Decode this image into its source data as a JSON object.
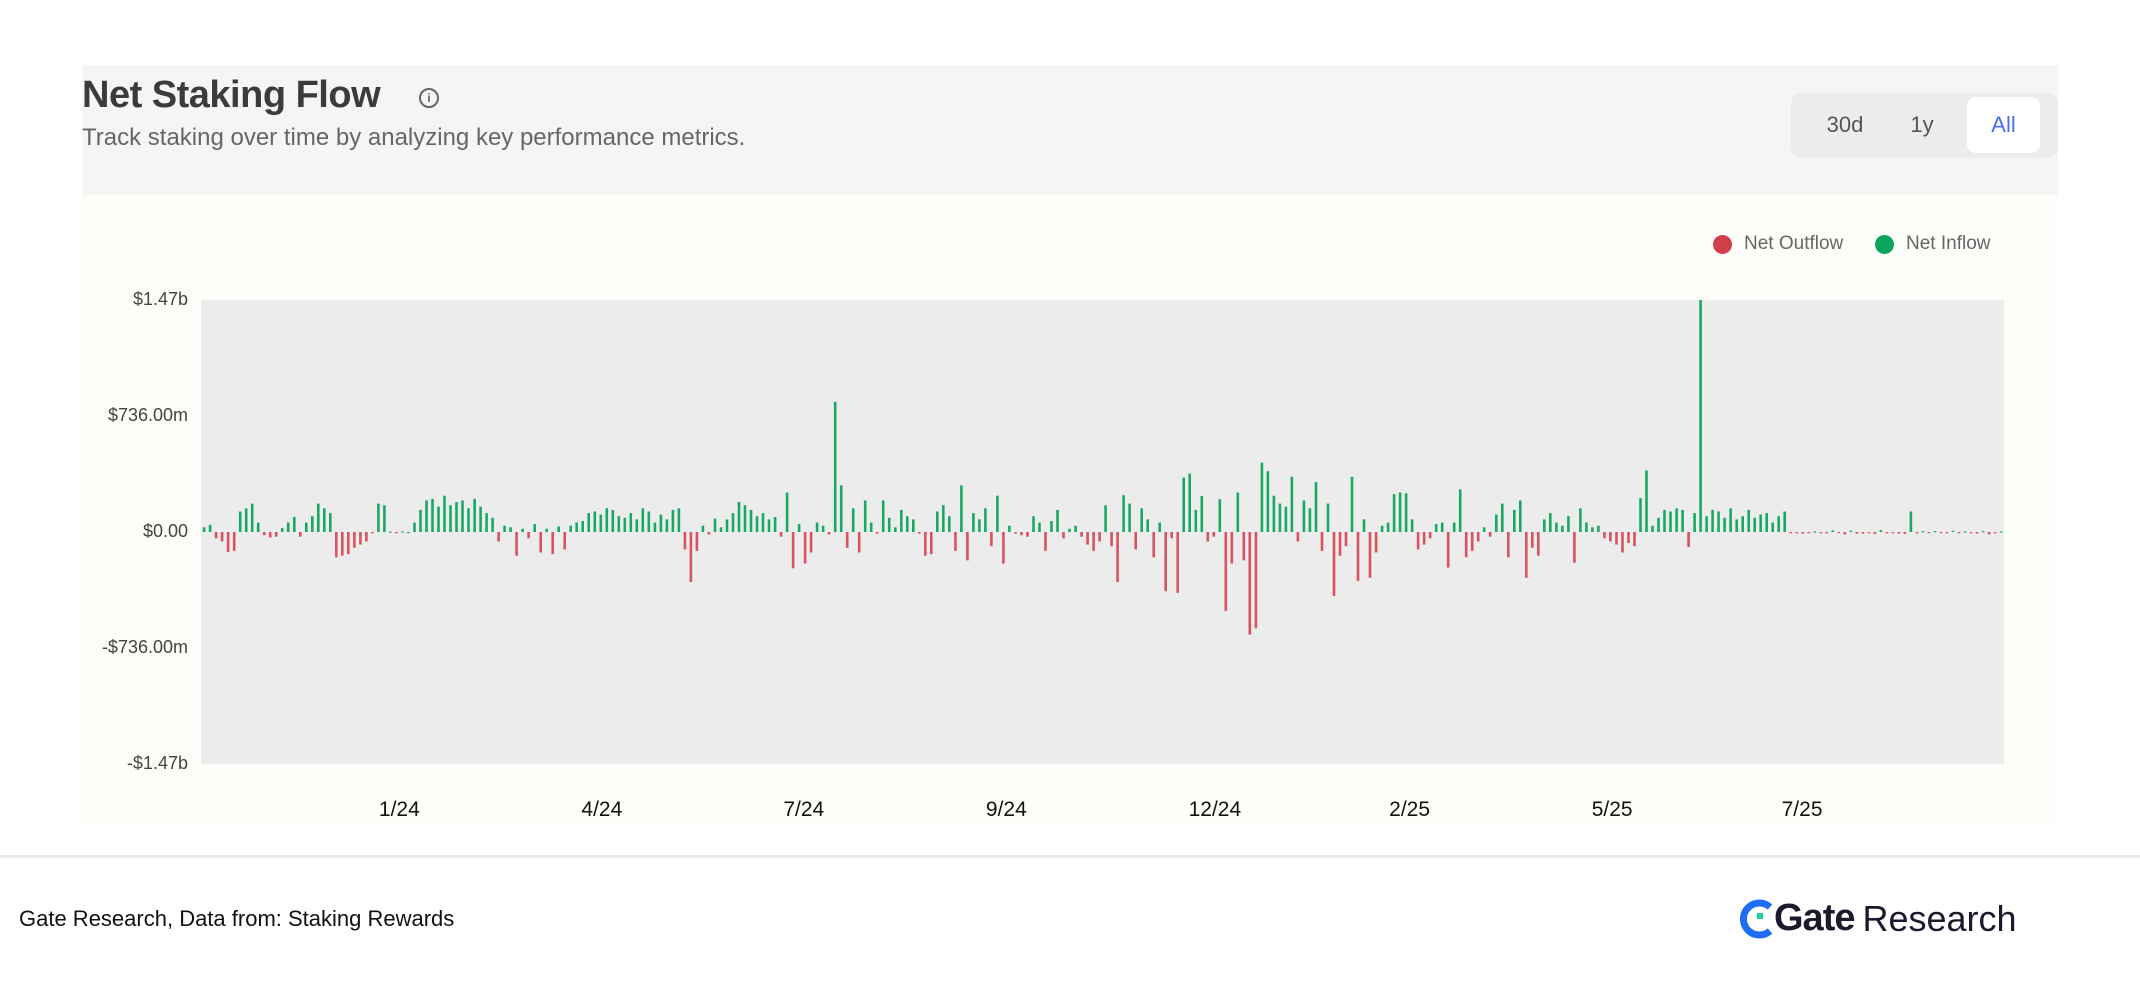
{
  "header": {
    "title": "Net Staking Flow",
    "info_icon": "info-circle-icon",
    "subtitle": "Track staking over time by analyzing key performance metrics."
  },
  "range_toggle": {
    "options": [
      "30d",
      "1y",
      "All"
    ],
    "selected": "All"
  },
  "colors": {
    "inflow": "#1ba866",
    "outflow": "#d9535f",
    "legend_inflow": "#0aa55a",
    "legend_outflow": "#d13f4b",
    "active_tab": "#4a6cf7"
  },
  "chart_data": {
    "type": "bar",
    "title": "Net Staking Flow",
    "unit": "$m",
    "legend": [
      {
        "label": "Net Outflow",
        "color": "#d13f4b"
      },
      {
        "label": "Net Inflow",
        "color": "#0aa55a"
      }
    ],
    "legend_position": "top-right",
    "ylim": [
      -1470,
      1470
    ],
    "y_ticks": [
      {
        "value": 1470,
        "label": "$1.47b"
      },
      {
        "value": 736,
        "label": "$736.00m"
      },
      {
        "value": 0,
        "label": "$0.00"
      },
      {
        "value": -736,
        "label": "-$736.00m"
      },
      {
        "value": -1470,
        "label": "-$1.47b"
      }
    ],
    "x_ticks": [
      {
        "label": "1/24",
        "index": 33
      },
      {
        "label": "4/24",
        "index": 66.7
      },
      {
        "label": "7/24",
        "index": 100.3
      },
      {
        "label": "9/24",
        "index": 134
      },
      {
        "label": "12/24",
        "index": 168.7
      },
      {
        "label": "2/25",
        "index": 201.1
      },
      {
        "label": "5/25",
        "index": 234.8
      },
      {
        "label": "7/25",
        "index": 266.4
      }
    ],
    "values": [
      30,
      45,
      -40,
      -60,
      -127,
      -120,
      130,
      150,
      180,
      60,
      -20,
      -35,
      -30,
      25,
      60,
      95,
      -30,
      60,
      100,
      180,
      150,
      120,
      -160,
      -150,
      -140,
      -100,
      -80,
      -60,
      -5,
      180,
      170,
      3,
      -5,
      4,
      0,
      60,
      140,
      200,
      210,
      160,
      230,
      170,
      190,
      200,
      150,
      210,
      160,
      120,
      90,
      -60,
      40,
      30,
      -150,
      20,
      -40,
      50,
      -130,
      20,
      -140,
      35,
      -110,
      40,
      60,
      70,
      120,
      130,
      110,
      150,
      140,
      100,
      90,
      120,
      80,
      150,
      130,
      60,
      110,
      80,
      140,
      150,
      -110,
      -317,
      -120,
      40,
      -15,
      85,
      30,
      80,
      120,
      190,
      170,
      140,
      100,
      120,
      80,
      95,
      -30,
      250,
      -230,
      50,
      -200,
      -130,
      60,
      40,
      -15,
      825,
      296,
      -100,
      150,
      -130,
      200,
      60,
      -10,
      200,
      90,
      30,
      140,
      100,
      80,
      -10,
      -150,
      -140,
      130,
      170,
      100,
      -120,
      296,
      -180,
      120,
      80,
      150,
      -90,
      230,
      -200,
      40,
      -10,
      -20,
      -30,
      100,
      60,
      -120,
      70,
      140,
      -40,
      20,
      40,
      -30,
      -80,
      -120,
      -60,
      170,
      -90,
      -317,
      233,
      180,
      -110,
      150,
      80,
      -160,
      60,
      -375,
      -40,
      -385,
      345,
      370,
      140,
      228,
      -60,
      -30,
      208,
      -500,
      -200,
      250,
      -180,
      -650,
      -610,
      440,
      385,
      230,
      180,
      160,
      350,
      -60,
      200,
      150,
      317,
      -120,
      180,
      -405,
      -150,
      -90,
      350,
      -310,
      80,
      -290,
      -130,
      40,
      60,
      240,
      250,
      245,
      80,
      -110,
      -80,
      -40,
      50,
      60,
      -225,
      60,
      270,
      -160,
      -120,
      -60,
      30,
      -30,
      110,
      180,
      -160,
      140,
      200,
      -290,
      -100,
      -150,
      80,
      120,
      60,
      40,
      100,
      -195,
      150,
      60,
      30,
      40,
      -40,
      -60,
      -80,
      -130,
      -70,
      -90,
      215,
      390,
      40,
      90,
      140,
      130,
      150,
      140,
      -95,
      120,
      1470,
      100,
      140,
      130,
      90,
      150,
      80,
      100,
      140,
      90,
      110,
      120,
      60,
      100,
      130,
      -5,
      -8,
      -10,
      -5,
      4,
      -8,
      -6,
      10,
      -5,
      -15,
      8,
      -10,
      -10,
      -6,
      -12,
      12,
      -8,
      -6,
      -10,
      -12,
      130,
      -8,
      6,
      -4,
      5,
      -6,
      -5,
      8,
      -4,
      4,
      -6,
      -10,
      5,
      -15,
      -4,
      3
    ]
  },
  "footer": {
    "source": "Gate Research, Data from:  Staking Rewards",
    "logo_text": "Gate",
    "logo_suffix": "Research"
  }
}
